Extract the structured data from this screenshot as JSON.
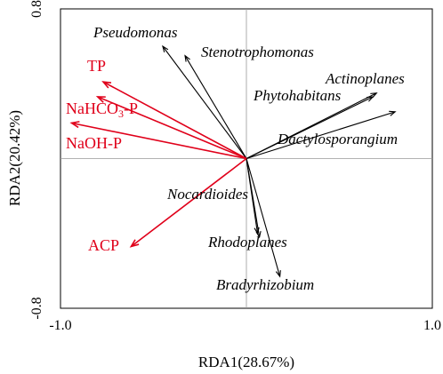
{
  "chart_data": {
    "type": "scatter",
    "subtype": "rda-biplot",
    "xlabel": "RDA1(28.67%)",
    "ylabel": "RDA2(20.42%)",
    "xlim": [
      -1.0,
      1.0
    ],
    "ylim": [
      -0.8,
      0.8
    ],
    "x_ticks": [
      {
        "value": -1.0,
        "label": "-1.0"
      },
      {
        "value": 1.0,
        "label": "1.0"
      }
    ],
    "y_ticks": [
      {
        "value": 0.8,
        "label": "0.8"
      },
      {
        "value": -0.8,
        "label": "-0.8"
      }
    ],
    "reference_lines": {
      "x": 0,
      "y": 0
    },
    "env_color": "#e0001a",
    "species_color": "#000000",
    "environment_vectors": [
      {
        "name": "TP",
        "x": -0.77,
        "y": 0.41
      },
      {
        "name": "NaHCO3-P",
        "x": -0.8,
        "y": 0.33,
        "sub": "3"
      },
      {
        "name": "NaOH-P",
        "x": -0.94,
        "y": 0.19
      },
      {
        "name": "ACP",
        "x": -0.62,
        "y": -0.47
      }
    ],
    "species_vectors": [
      {
        "name": "Pseudomonas",
        "x": -0.45,
        "y": 0.6
      },
      {
        "name": "Stenotrophomonas",
        "x": -0.33,
        "y": 0.55
      },
      {
        "name": "Actinoplanes",
        "x": 0.7,
        "y": 0.35
      },
      {
        "name": "Phytohabitans",
        "x": 0.68,
        "y": 0.33
      },
      {
        "name": "Dactylosporangium",
        "x": 0.8,
        "y": 0.25
      },
      {
        "name": "Nocardioides",
        "x": 0.06,
        "y": -0.4
      },
      {
        "name": "Rhodoplanes",
        "x": 0.07,
        "y": -0.42
      },
      {
        "name": "Bradyrhizobium",
        "x": 0.18,
        "y": -0.63
      }
    ]
  }
}
